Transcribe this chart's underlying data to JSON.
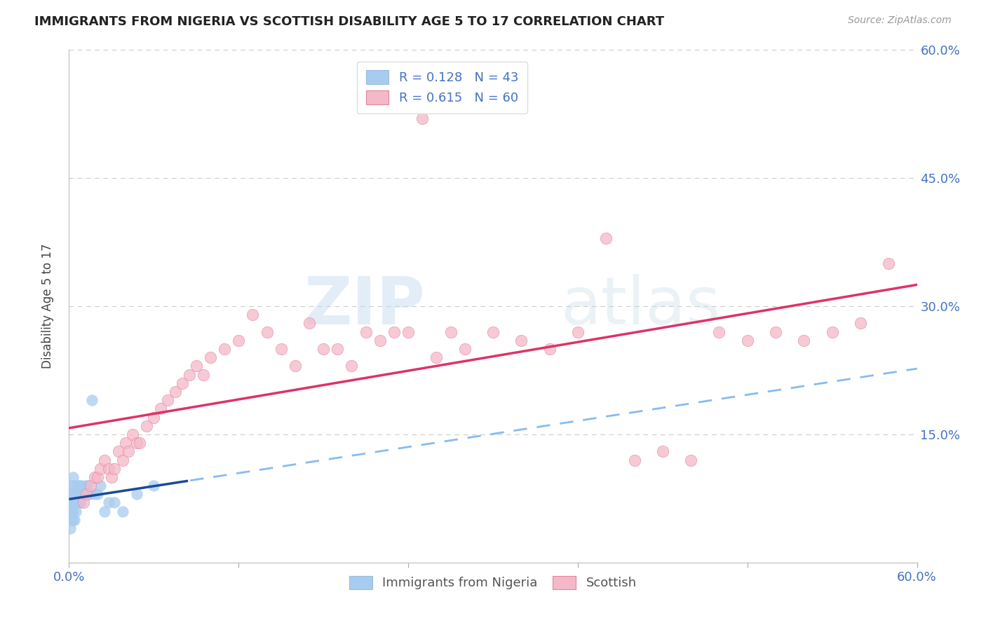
{
  "title": "IMMIGRANTS FROM NIGERIA VS SCOTTISH DISABILITY AGE 5 TO 17 CORRELATION CHART",
  "source": "Source: ZipAtlas.com",
  "ylabel": "Disability Age 5 to 17",
  "legend_label1": "Immigrants from Nigeria",
  "legend_label2": "Scottish",
  "r1": 0.128,
  "n1": 43,
  "r2": 0.615,
  "n2": 60,
  "blue_scatter": "#a8ccf0",
  "blue_line_solid": "#1a4a99",
  "blue_line_dash": "#88bbee",
  "pink_scatter": "#f5b8c8",
  "pink_line": "#dd3366",
  "xmin": 0.0,
  "xmax": 0.6,
  "ymin": 0.0,
  "ymax": 0.6,
  "yticks": [
    0.0,
    0.15,
    0.3,
    0.45,
    0.6
  ],
  "xtick_positions": [
    0.0,
    0.12,
    0.24,
    0.36,
    0.48,
    0.6
  ],
  "grid_color": "#cccccc",
  "nigeria_x": [
    0.001,
    0.001,
    0.001,
    0.001,
    0.002,
    0.002,
    0.002,
    0.002,
    0.002,
    0.003,
    0.003,
    0.003,
    0.003,
    0.003,
    0.004,
    0.004,
    0.004,
    0.004,
    0.005,
    0.005,
    0.005,
    0.006,
    0.006,
    0.007,
    0.007,
    0.008,
    0.008,
    0.009,
    0.01,
    0.011,
    0.012,
    0.013,
    0.015,
    0.016,
    0.018,
    0.02,
    0.022,
    0.025,
    0.028,
    0.032,
    0.038,
    0.048,
    0.06
  ],
  "nigeria_y": [
    0.04,
    0.06,
    0.07,
    0.08,
    0.05,
    0.06,
    0.07,
    0.08,
    0.09,
    0.05,
    0.06,
    0.07,
    0.08,
    0.1,
    0.05,
    0.07,
    0.08,
    0.09,
    0.06,
    0.07,
    0.08,
    0.07,
    0.09,
    0.07,
    0.09,
    0.07,
    0.09,
    0.08,
    0.08,
    0.09,
    0.08,
    0.09,
    0.08,
    0.19,
    0.08,
    0.08,
    0.09,
    0.06,
    0.07,
    0.07,
    0.06,
    0.08,
    0.09
  ],
  "scottish_x": [
    0.01,
    0.012,
    0.015,
    0.018,
    0.02,
    0.022,
    0.025,
    0.028,
    0.03,
    0.032,
    0.035,
    0.038,
    0.04,
    0.042,
    0.045,
    0.048,
    0.05,
    0.055,
    0.06,
    0.065,
    0.07,
    0.075,
    0.08,
    0.085,
    0.09,
    0.095,
    0.1,
    0.11,
    0.12,
    0.13,
    0.14,
    0.15,
    0.16,
    0.17,
    0.18,
    0.19,
    0.2,
    0.21,
    0.22,
    0.23,
    0.24,
    0.25,
    0.26,
    0.27,
    0.28,
    0.3,
    0.32,
    0.34,
    0.36,
    0.38,
    0.4,
    0.42,
    0.44,
    0.46,
    0.48,
    0.5,
    0.52,
    0.54,
    0.56,
    0.58
  ],
  "scottish_y": [
    0.07,
    0.08,
    0.09,
    0.1,
    0.1,
    0.11,
    0.12,
    0.11,
    0.1,
    0.11,
    0.13,
    0.12,
    0.14,
    0.13,
    0.15,
    0.14,
    0.14,
    0.16,
    0.17,
    0.18,
    0.19,
    0.2,
    0.21,
    0.22,
    0.23,
    0.22,
    0.24,
    0.25,
    0.26,
    0.29,
    0.27,
    0.25,
    0.23,
    0.28,
    0.25,
    0.25,
    0.23,
    0.27,
    0.26,
    0.27,
    0.27,
    0.52,
    0.24,
    0.27,
    0.25,
    0.27,
    0.26,
    0.25,
    0.27,
    0.38,
    0.12,
    0.13,
    0.12,
    0.27,
    0.26,
    0.27,
    0.26,
    0.27,
    0.28,
    0.35
  ]
}
